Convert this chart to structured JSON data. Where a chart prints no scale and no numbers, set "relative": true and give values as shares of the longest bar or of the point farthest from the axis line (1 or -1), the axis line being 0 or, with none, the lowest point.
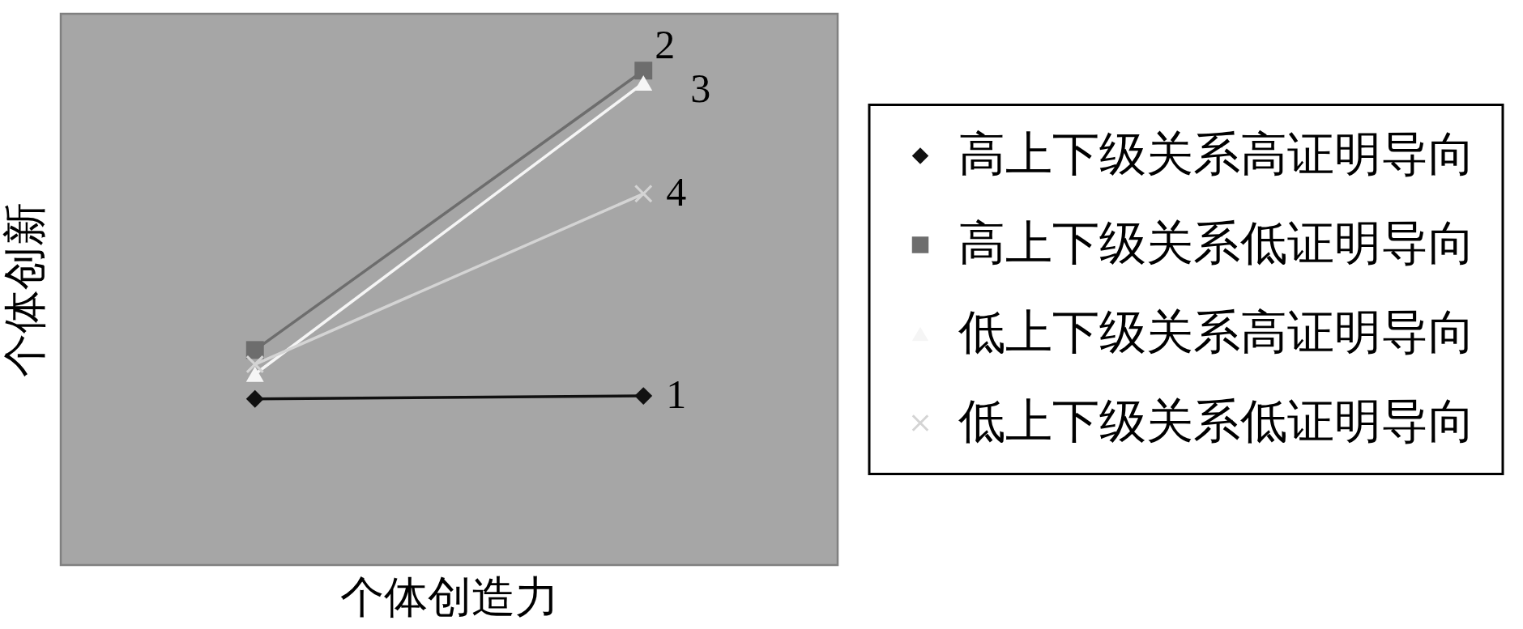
{
  "chart_data": {
    "type": "line",
    "relative": true,
    "xlabel": "个体创造力",
    "ylabel": "个体创新",
    "categories": [
      null,
      null
    ],
    "series": [
      {
        "name": "高上下级关系高证明导向",
        "color": "#111111",
        "marker": "diamond",
        "values": [
          0.336,
          0.342
        ]
      },
      {
        "name": "高上下级关系低证明导向",
        "color": "#6d6d6d",
        "marker": "square",
        "values": [
          0.435,
          1
        ]
      },
      {
        "name": "低上下级关系高证明导向",
        "color": "#f5f5f5",
        "marker": "triangle",
        "values": [
          0.386,
          0.975
        ]
      },
      {
        "name": "低上下级关系低证明导向",
        "color": "#d4d4d4",
        "marker": "cross",
        "values": [
          0.406,
          0.751
        ]
      }
    ],
    "annotations": [
      "1",
      "2",
      "3",
      "4"
    ],
    "legend": "right",
    "line_style": "solid"
  }
}
